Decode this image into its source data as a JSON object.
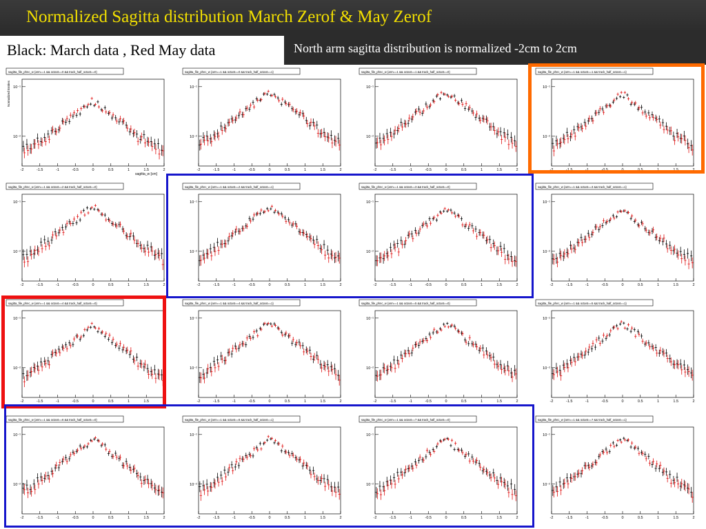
{
  "slide": {
    "title": "Normalized Sagitta distribution March Zerof & May Zerof",
    "legend": "Black: March data ,  Red May data",
    "subtitle": "North arm sagitta distribution is normalized -2cm to 2cm"
  },
  "colors": {
    "title": "#f3e000",
    "march": "#000000",
    "may": "#e01010",
    "orange_box": "#ff6a00",
    "red_box": "#ee1111",
    "blue_box": "#1616cc"
  },
  "axis": {
    "xlabel": "sagitta_w [cm]",
    "ylabel": "Normalized Entries",
    "xticks": [
      "-2",
      "-1.5",
      "-1",
      "-0.5",
      "0",
      "0.5",
      "1",
      "1.5",
      "2"
    ],
    "yticks": [
      "10⁻¹",
      "10⁻²"
    ]
  },
  "chart_data": [
    {
      "type": "scatter",
      "title": "sagitta_file_phnc_w {arm==1 && octant==0 && track_half_octant==0}",
      "xlabel": "sagitta_w [cm]",
      "ylabel": "Normalized Entries",
      "xlim": [
        -2,
        2
      ],
      "log_y": true,
      "series": [
        {
          "name": "March",
          "color": "#000000"
        },
        {
          "name": "May",
          "color": "#e01010"
        }
      ],
      "peak": 0.05
    },
    {
      "type": "scatter",
      "title": "sagitta_file_phnc_w {arm==1 && octant==0 && track_half_octant==1}",
      "xlim": [
        -2,
        2
      ],
      "log_y": true,
      "series": [
        {
          "name": "March",
          "color": "#000000"
        },
        {
          "name": "May",
          "color": "#e01010"
        }
      ],
      "peak": 0.08
    },
    {
      "type": "scatter",
      "title": "sagitta_file_phnc_w {arm==1 && octant==1 && track_half_octant==0}",
      "xlim": [
        -2,
        2
      ],
      "log_y": true,
      "series": [
        {
          "name": "March",
          "color": "#000000"
        },
        {
          "name": "May",
          "color": "#e01010"
        }
      ],
      "peak": 0.08
    },
    {
      "type": "scatter",
      "title": "sagitta_file_phnc_w {arm==1 && octant==1 && track_half_octant==1}",
      "xlim": [
        -2,
        2
      ],
      "log_y": true,
      "series": [
        {
          "name": "March",
          "color": "#000000"
        },
        {
          "name": "May",
          "color": "#e01010"
        }
      ],
      "peak": 0.07
    },
    {
      "type": "scatter",
      "title": "sagitta_file_phnc_w {arm==1 && octant==2 && track_half_octant==0}",
      "xlim": [
        -2,
        2
      ],
      "log_y": true,
      "series": [
        {
          "name": "March",
          "color": "#000000"
        },
        {
          "name": "May",
          "color": "#e01010"
        }
      ],
      "peak": 0.08
    },
    {
      "type": "scatter",
      "title": "sagitta_file_phnc_w {arm==1 && octant==2 && track_half_octant==1}",
      "xlim": [
        -2,
        2
      ],
      "log_y": true,
      "series": [
        {
          "name": "March",
          "color": "#000000"
        },
        {
          "name": "May",
          "color": "#e01010"
        }
      ],
      "peak": 0.08
    },
    {
      "type": "scatter",
      "title": "sagitta_file_phnc_w {arm==1 && octant==3 && track_half_octant==0}",
      "xlim": [
        -2,
        2
      ],
      "log_y": true,
      "series": [
        {
          "name": "March",
          "color": "#000000"
        },
        {
          "name": "May",
          "color": "#e01010"
        }
      ],
      "peak": 0.07
    },
    {
      "type": "scatter",
      "title": "sagitta_file_phnc_w {arm==1 && octant==3 && track_half_octant==1}",
      "xlim": [
        -2,
        2
      ],
      "log_y": true,
      "series": [
        {
          "name": "March",
          "color": "#000000"
        },
        {
          "name": "May",
          "color": "#e01010"
        }
      ],
      "peak": 0.07
    },
    {
      "type": "scatter",
      "title": "sagitta_file_phnc_w {arm==1 && octant==4 && track_half_octant==0}",
      "xlim": [
        -2,
        2
      ],
      "log_y": true,
      "series": [
        {
          "name": "March",
          "color": "#000000"
        },
        {
          "name": "May",
          "color": "#e01010"
        }
      ],
      "peak": 0.07
    },
    {
      "type": "scatter",
      "title": "sagitta_file_phnc_w {arm==1 && octant==4 && track_half_octant==1}",
      "xlim": [
        -2,
        2
      ],
      "log_y": true,
      "series": [
        {
          "name": "March",
          "color": "#000000"
        },
        {
          "name": "May",
          "color": "#e01010"
        }
      ],
      "peak": 0.08
    },
    {
      "type": "scatter",
      "title": "sagitta_file_phnc_w {arm==1 && octant==5 && track_half_octant==0}",
      "xlim": [
        -2,
        2
      ],
      "log_y": true,
      "series": [
        {
          "name": "March",
          "color": "#000000"
        },
        {
          "name": "May",
          "color": "#e01010"
        }
      ],
      "peak": 0.08
    },
    {
      "type": "scatter",
      "title": "sagitta_file_phnc_w {arm==1 && octant==5 && track_half_octant==1}",
      "xlim": [
        -2,
        2
      ],
      "log_y": true,
      "series": [
        {
          "name": "March",
          "color": "#000000"
        },
        {
          "name": "May",
          "color": "#e01010"
        }
      ],
      "peak": 0.08
    },
    {
      "type": "scatter",
      "title": "sagitta_file_phnc_w {arm==1 && octant==6 && track_half_octant==0}",
      "xlim": [
        -2,
        2
      ],
      "log_y": true,
      "series": [
        {
          "name": "March",
          "color": "#000000"
        },
        {
          "name": "May",
          "color": "#e01010"
        }
      ],
      "peak": 0.08
    },
    {
      "type": "scatter",
      "title": "sagitta_file_phnc_w {arm==1 && octant==6 && track_half_octant==1}",
      "xlim": [
        -2,
        2
      ],
      "log_y": true,
      "series": [
        {
          "name": "March",
          "color": "#000000"
        },
        {
          "name": "May",
          "color": "#e01010"
        }
      ],
      "peak": 0.08
    },
    {
      "type": "scatter",
      "title": "sagitta_file_phnc_w {arm==1 && octant==7 && track_half_octant==0}",
      "xlim": [
        -2,
        2
      ],
      "log_y": true,
      "series": [
        {
          "name": "March",
          "color": "#000000"
        },
        {
          "name": "May",
          "color": "#e01010"
        }
      ],
      "peak": 0.08
    },
    {
      "type": "scatter",
      "title": "sagitta_file_phnc_w {arm==1 && octant==7 && track_half_octant==1}",
      "xlim": [
        -2,
        2
      ],
      "log_y": true,
      "series": [
        {
          "name": "March",
          "color": "#000000"
        },
        {
          "name": "May",
          "color": "#e01010"
        }
      ],
      "peak": 0.08
    }
  ]
}
